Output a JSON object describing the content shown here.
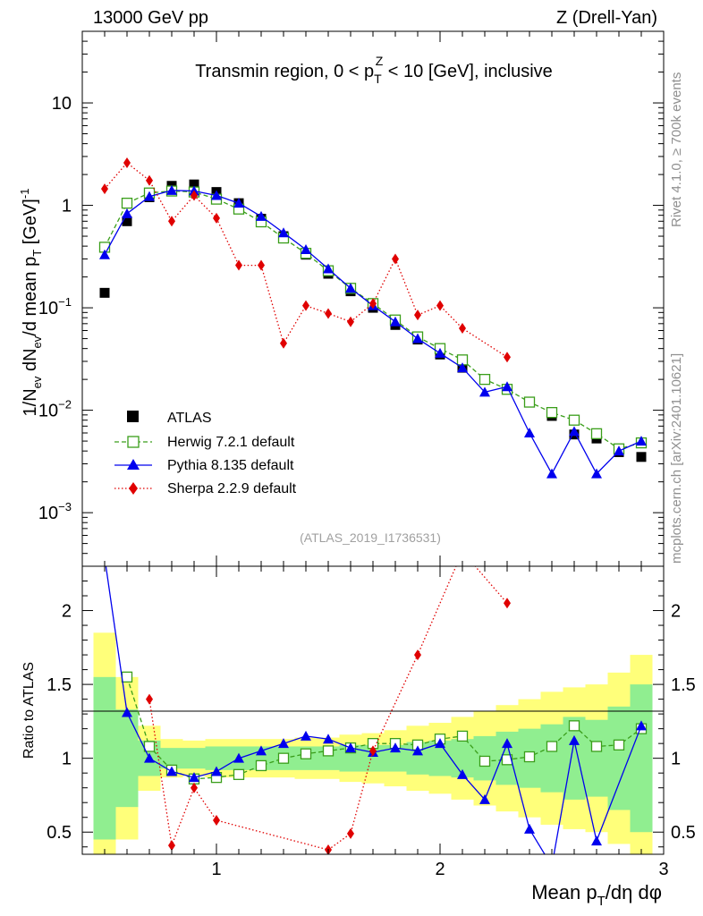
{
  "header": {
    "energy": "13000 GeV pp",
    "process": "Z (Drell-Yan)"
  },
  "side_labels": {
    "rivet": "Rivet 4.1.0, ≥ 700k events",
    "mcplots": "mcplots.cern.ch [arXiv:2401.10621]"
  },
  "chart_data": [
    {
      "type": "scatter",
      "name": "main",
      "title": "Transmin region, 0 < pTZ < 10 [GeV], inclusive",
      "title_parts": {
        "a": "Transmin region, 0 < p",
        "sup": "Z",
        "sub": "T",
        "b": " < 10 [GeV], inclusive"
      },
      "ylabel": "1/Nev dNev/d mean pT [GeV]-1",
      "ylabel_parts": {
        "a": "1/N",
        "s1": "ev",
        "b": " dN",
        "s2": "ev",
        "c": "/d mean p",
        "s3": "T",
        "d": " [GeV]",
        "s4": "-1"
      },
      "yscale": "log",
      "xlim": [
        0.4,
        3.0
      ],
      "ylim": [
        0.0003,
        50
      ],
      "ytick_labels": [
        {
          "v": 10,
          "base": "10",
          "exp": ""
        },
        {
          "v": 1,
          "base": "1",
          "exp": ""
        },
        {
          "v": 0.1,
          "base": "10",
          "exp": "−1"
        },
        {
          "v": 0.01,
          "base": "10",
          "exp": "−2"
        },
        {
          "v": 0.001,
          "base": "10",
          "exp": "−3"
        }
      ],
      "watermark": "(ATLAS_2019_I1736531)",
      "legend_position": "bottom-left",
      "series": [
        {
          "name": "ATLAS",
          "color": "#000000",
          "marker": "square-filled",
          "line": "none",
          "x": [
            0.5,
            0.6,
            0.7,
            0.8,
            0.9,
            1.0,
            1.1,
            1.2,
            1.3,
            1.4,
            1.5,
            1.6,
            1.7,
            1.8,
            1.9,
            2.0,
            2.1,
            2.2,
            2.3,
            2.4,
            2.5,
            2.6,
            2.7,
            2.8,
            2.9
          ],
          "y": [
            0.14,
            0.7,
            1.2,
            1.55,
            1.6,
            1.35,
            1.05,
            0.74,
            0.5,
            0.33,
            0.215,
            0.145,
            0.1,
            0.068,
            0.049,
            0.035,
            0.026,
            0.02,
            0.016,
            0.012,
            0.0088,
            0.0058,
            0.0053,
            0.0039,
            0.0035
          ]
        },
        {
          "name": "Herwig 7.2.1 default",
          "color": "#3a9e1a",
          "marker": "square-open",
          "line": "dashed",
          "x": [
            0.5,
            0.6,
            0.7,
            0.8,
            0.9,
            1.0,
            1.1,
            1.2,
            1.3,
            1.4,
            1.5,
            1.6,
            1.7,
            1.8,
            1.9,
            2.0,
            2.1,
            2.2,
            2.3,
            2.4,
            2.5,
            2.6,
            2.7,
            2.8,
            2.9
          ],
          "y": [
            0.39,
            1.05,
            1.32,
            1.38,
            1.35,
            1.15,
            0.92,
            0.69,
            0.48,
            0.34,
            0.23,
            0.155,
            0.11,
            0.076,
            0.052,
            0.04,
            0.031,
            0.02,
            0.016,
            0.012,
            0.0095,
            0.008,
            0.0059,
            0.0042,
            0.0048
          ]
        },
        {
          "name": "Pythia 8.135 default",
          "color": "#0000ee",
          "marker": "triangle-filled",
          "line": "solid",
          "x": [
            0.5,
            0.6,
            0.7,
            0.8,
            0.9,
            1.0,
            1.1,
            1.2,
            1.3,
            1.4,
            1.5,
            1.6,
            1.7,
            1.8,
            1.9,
            2.0,
            2.1,
            2.2,
            2.3,
            2.4,
            2.5,
            2.6,
            2.7,
            2.8,
            2.9
          ],
          "y": [
            0.33,
            0.83,
            1.22,
            1.4,
            1.38,
            1.25,
            1.05,
            0.78,
            0.54,
            0.37,
            0.24,
            0.155,
            0.105,
            0.073,
            0.05,
            0.036,
            0.026,
            0.015,
            0.017,
            0.006,
            0.0024,
            0.0062,
            0.0024,
            0.004,
            0.005
          ]
        },
        {
          "name": "Sherpa 2.2.9 default",
          "color": "#e00000",
          "marker": "diamond-filled",
          "line": "dotted",
          "x": [
            0.5,
            0.6,
            0.7,
            0.8,
            0.9,
            1.0,
            1.1,
            1.2,
            1.3,
            1.4,
            1.5,
            1.6,
            1.7,
            1.8,
            1.9,
            2.0,
            2.1,
            2.3
          ],
          "y": [
            1.45,
            2.6,
            1.75,
            0.7,
            1.25,
            0.75,
            0.26,
            0.26,
            0.045,
            0.105,
            0.088,
            0.073,
            0.11,
            0.3,
            0.085,
            0.105,
            0.063,
            0.033
          ]
        }
      ]
    },
    {
      "type": "scatter",
      "name": "ratio",
      "ylabel": "Ratio to ATLAS",
      "xlabel": "Mean pT/dη dφ",
      "xlabel_parts": {
        "a": "Mean p",
        "sub": "T",
        "b": "/dη dφ"
      },
      "xlim": [
        0.4,
        3.0
      ],
      "ylim": [
        0.35,
        2.3
      ],
      "xtick_labels": [
        "1",
        "2",
        "3"
      ],
      "ytick_labels": [
        "2",
        "1.5",
        "1",
        "0.5"
      ],
      "bands": {
        "x": [
          0.5,
          0.6,
          0.7,
          0.8,
          0.9,
          1.0,
          1.1,
          1.2,
          1.3,
          1.4,
          1.5,
          1.6,
          1.7,
          1.8,
          1.9,
          2.0,
          2.1,
          2.2,
          2.3,
          2.4,
          2.5,
          2.6,
          2.7,
          2.8,
          2.9
        ],
        "green_half": [
          0.55,
          0.33,
          0.12,
          0.07,
          0.07,
          0.08,
          0.08,
          0.08,
          0.08,
          0.08,
          0.08,
          0.09,
          0.09,
          0.09,
          0.11,
          0.12,
          0.13,
          0.15,
          0.18,
          0.2,
          0.23,
          0.28,
          0.26,
          0.35,
          0.5
        ],
        "yellow_half": [
          0.85,
          0.55,
          0.22,
          0.13,
          0.12,
          0.13,
          0.13,
          0.13,
          0.13,
          0.14,
          0.14,
          0.16,
          0.17,
          0.19,
          0.22,
          0.24,
          0.28,
          0.32,
          0.36,
          0.4,
          0.45,
          0.48,
          0.5,
          0.58,
          0.7
        ]
      },
      "series": [
        {
          "name": "Herwig 7.2.1 default",
          "color": "#3a9e1a",
          "marker": "square-open",
          "line": "dashed",
          "x": [
            0.6,
            0.7,
            0.8,
            0.9,
            1.0,
            1.1,
            1.2,
            1.3,
            1.4,
            1.5,
            1.6,
            1.7,
            1.8,
            1.9,
            2.0,
            2.1,
            2.2,
            2.3,
            2.4,
            2.5,
            2.6,
            2.7,
            2.8,
            2.9
          ],
          "y": [
            1.55,
            1.08,
            0.92,
            0.86,
            0.87,
            0.89,
            0.95,
            1.0,
            1.03,
            1.05,
            1.07,
            1.1,
            1.1,
            1.09,
            1.13,
            1.15,
            0.98,
            0.99,
            1.01,
            1.08,
            1.22,
            1.08,
            1.09,
            1.2
          ]
        },
        {
          "name": "Pythia 8.135 default",
          "color": "#0000ee",
          "marker": "triangle-filled",
          "line": "solid",
          "x": [
            0.5,
            0.6,
            0.7,
            0.8,
            0.9,
            1.0,
            1.1,
            1.2,
            1.3,
            1.4,
            1.5,
            1.6,
            1.7,
            1.8,
            1.9,
            2.0,
            2.1,
            2.2,
            2.3,
            2.4,
            2.5,
            2.6,
            2.7,
            2.9
          ],
          "y": [
            2.36,
            1.31,
            1.0,
            0.91,
            0.87,
            0.91,
            1.0,
            1.05,
            1.1,
            1.15,
            1.13,
            1.07,
            1.04,
            1.07,
            1.05,
            1.1,
            0.89,
            0.72,
            1.1,
            0.52,
            0.27,
            1.12,
            0.44,
            1.22
          ]
        },
        {
          "name": "Sherpa 2.2.9 default",
          "color": "#e00000",
          "marker": "diamond-filled",
          "line": "dotted",
          "x": [
            0.7,
            0.8,
            0.9,
            1.0,
            1.5,
            1.6,
            1.7,
            1.9,
            2.1,
            2.3
          ],
          "y": [
            1.4,
            0.41,
            0.8,
            0.58,
            0.38,
            0.49,
            1.05,
            1.7,
            2.4,
            2.05
          ]
        }
      ]
    }
  ]
}
